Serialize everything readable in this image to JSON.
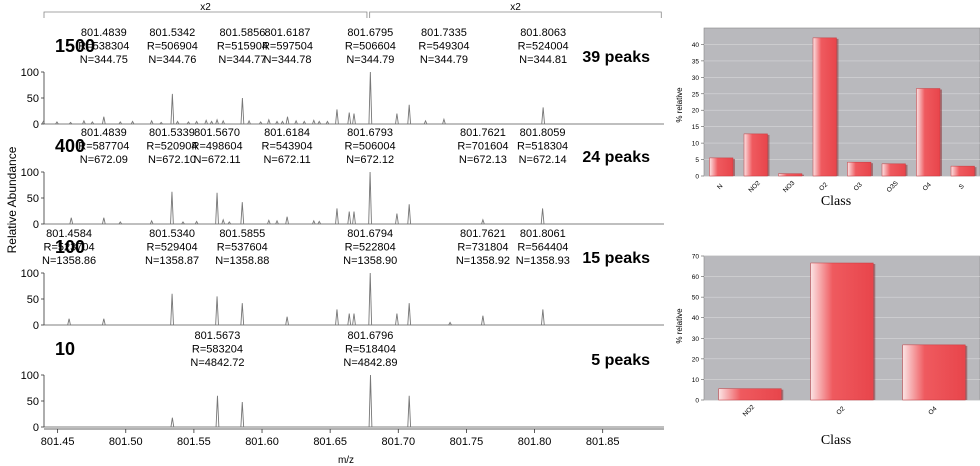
{
  "spectra": {
    "ylabel": "Relative Abundance",
    "xlabel": "m/z",
    "xlim": [
      801.44,
      801.895
    ],
    "ylim": [
      0,
      100
    ],
    "xticks": [
      "801.45",
      "801.50",
      "801.55",
      "801.60",
      "801.65",
      "801.70",
      "801.75",
      "801.80",
      "801.85"
    ],
    "xtick_values": [
      801.45,
      801.5,
      801.55,
      801.6,
      801.65,
      801.7,
      801.75,
      801.8,
      801.85
    ],
    "yticks": [
      "0",
      "50",
      "100"
    ],
    "zoom_brackets": [
      {
        "label": "x2",
        "x_from": 801.44,
        "x_to": 801.677
      },
      {
        "label": "x2",
        "x_from": 801.679,
        "x_to": 801.893
      }
    ],
    "panels": [
      {
        "number": "1500",
        "peaks_label": "39 peaks",
        "peaks": [
          [
            801.4395,
            5
          ],
          [
            801.4495,
            4
          ],
          [
            801.4595,
            3
          ],
          [
            801.4693,
            6
          ],
          [
            801.4755,
            4
          ],
          [
            801.4839,
            14
          ],
          [
            801.496,
            4
          ],
          [
            801.505,
            5
          ],
          [
            801.519,
            6
          ],
          [
            801.526,
            3
          ],
          [
            801.5342,
            58
          ],
          [
            801.538,
            5
          ],
          [
            801.546,
            4
          ],
          [
            801.552,
            5
          ],
          [
            801.559,
            7
          ],
          [
            801.563,
            5
          ],
          [
            801.567,
            8
          ],
          [
            801.5715,
            6
          ],
          [
            801.5856,
            50
          ],
          [
            801.5905,
            6
          ],
          [
            801.599,
            4
          ],
          [
            801.605,
            8
          ],
          [
            801.611,
            5
          ],
          [
            801.615,
            5
          ],
          [
            801.6187,
            14
          ],
          [
            801.625,
            6
          ],
          [
            801.631,
            5
          ],
          [
            801.638,
            7
          ],
          [
            801.642,
            5
          ],
          [
            801.648,
            5
          ],
          [
            801.655,
            28
          ],
          [
            801.664,
            22
          ],
          [
            801.6675,
            20
          ],
          [
            801.6795,
            100
          ],
          [
            801.699,
            20
          ],
          [
            801.708,
            37
          ],
          [
            801.72,
            6
          ],
          [
            801.7335,
            9
          ],
          [
            801.8063,
            32
          ]
        ],
        "labels": [
          {
            "x": 801.4839,
            "lines": [
              "801.4839",
              "R=538304",
              "N=344.75"
            ]
          },
          {
            "x": 801.5342,
            "lines": [
              "801.5342",
              "R=506904",
              "N=344.76"
            ]
          },
          {
            "x": 801.5856,
            "lines": [
              "801.5856",
              "R=515904",
              "N=344.77"
            ]
          },
          {
            "x": 801.6187,
            "lines": [
              "801.6187",
              "R=597504",
              "N=344.78"
            ]
          },
          {
            "x": 801.6795,
            "lines": [
              "801.6795",
              "R=506604",
              "N=344.79"
            ]
          },
          {
            "x": 801.7335,
            "lines": [
              "801.7335",
              "R=549304",
              "N=344.79"
            ]
          },
          {
            "x": 801.8063,
            "lines": [
              "801.8063",
              "R=524004",
              "N=344.81"
            ]
          }
        ]
      },
      {
        "number": "400",
        "peaks_label": "24 peaks",
        "peaks": [
          [
            801.46,
            12
          ],
          [
            801.4839,
            12
          ],
          [
            801.496,
            4
          ],
          [
            801.519,
            6
          ],
          [
            801.5339,
            62
          ],
          [
            801.542,
            4
          ],
          [
            801.552,
            5
          ],
          [
            801.567,
            60
          ],
          [
            801.5715,
            8
          ],
          [
            801.576,
            4
          ],
          [
            801.5855,
            42
          ],
          [
            801.605,
            7
          ],
          [
            801.611,
            6
          ],
          [
            801.6184,
            14
          ],
          [
            801.638,
            6
          ],
          [
            801.642,
            5
          ],
          [
            801.655,
            30
          ],
          [
            801.664,
            24
          ],
          [
            801.6675,
            24
          ],
          [
            801.6793,
            100
          ],
          [
            801.699,
            20
          ],
          [
            801.708,
            38
          ],
          [
            801.7621,
            8
          ],
          [
            801.8059,
            30
          ]
        ],
        "labels": [
          {
            "x": 801.4839,
            "lines": [
              "801.4839",
              "R=587704",
              "N=672.09"
            ]
          },
          {
            "x": 801.5339,
            "lines": [
              "801.5339",
              "R=520904",
              "N=672.10"
            ]
          },
          {
            "x": 801.567,
            "lines": [
              "801.5670",
              "R=498604",
              "N=672.11"
            ]
          },
          {
            "x": 801.6184,
            "lines": [
              "801.6184",
              "R=543904",
              "N=672.11"
            ]
          },
          {
            "x": 801.6793,
            "lines": [
              "801.6793",
              "R=506004",
              "N=672.12"
            ]
          },
          {
            "x": 801.7621,
            "lines": [
              "801.7621",
              "R=701604",
              "N=672.13"
            ]
          },
          {
            "x": 801.8059,
            "lines": [
              "801.8059",
              "R=518304",
              "N=672.14"
            ]
          }
        ]
      },
      {
        "number": "100",
        "peaks_label": "15 peaks",
        "peaks": [
          [
            801.4584,
            12
          ],
          [
            801.4839,
            12
          ],
          [
            801.534,
            60
          ],
          [
            801.567,
            55
          ],
          [
            801.5855,
            42
          ],
          [
            801.6184,
            16
          ],
          [
            801.655,
            30
          ],
          [
            801.664,
            22
          ],
          [
            801.6675,
            22
          ],
          [
            801.6794,
            100
          ],
          [
            801.699,
            22
          ],
          [
            801.708,
            42
          ],
          [
            801.7621,
            18
          ],
          [
            801.8061,
            30
          ],
          [
            801.738,
            5
          ]
        ],
        "labels": [
          {
            "x": 801.4584,
            "lines": [
              "801.4584",
              "R=523704",
              "N=1358.86"
            ]
          },
          {
            "x": 801.534,
            "lines": [
              "801.5340",
              "R=529404",
              "N=1358.87"
            ]
          },
          {
            "x": 801.5855,
            "lines": [
              "801.5855",
              "R=537604",
              "N=1358.88"
            ]
          },
          {
            "x": 801.6794,
            "lines": [
              "801.6794",
              "R=522804",
              "N=1358.90"
            ]
          },
          {
            "x": 801.7621,
            "lines": [
              "801.7621",
              "R=731804",
              "N=1358.92"
            ]
          },
          {
            "x": 801.8061,
            "lines": [
              "801.8061",
              "R=564404",
              "N=1358.93"
            ]
          }
        ]
      },
      {
        "number": "10",
        "peaks_label": "5 peaks",
        "peaks": [
          [
            801.5342,
            18
          ],
          [
            801.5673,
            60
          ],
          [
            801.5855,
            48
          ],
          [
            801.6796,
            100
          ],
          [
            801.708,
            60
          ]
        ],
        "labels": [
          {
            "x": 801.5673,
            "lines": [
              "801.5673",
              "R=583204",
              "N=4842.72"
            ]
          },
          {
            "x": 801.6796,
            "lines": [
              "801.6796",
              "R=518404",
              "N=4842.89"
            ]
          }
        ]
      }
    ]
  },
  "chart_data": [
    {
      "type": "bar",
      "categories": [
        "N",
        "NO2",
        "NO3",
        "O2",
        "O3",
        "O3S",
        "O4",
        "S"
      ],
      "values": [
        5.5,
        12.8,
        0.7,
        42.0,
        4.2,
        3.7,
        26.6,
        3.0
      ],
      "xlabel": "Class",
      "ylabel": "% relative",
      "ylim": [
        0,
        45
      ],
      "yticks": [
        0,
        5,
        10,
        15,
        20,
        25,
        30,
        35,
        40
      ],
      "grid": true,
      "bar_color": "#ef5a5f",
      "background": "#b9b9bd"
    },
    {
      "type": "bar",
      "categories": [
        "NO2",
        "O2",
        "O4"
      ],
      "values": [
        5.5,
        66.6,
        26.8
      ],
      "xlabel": "Class",
      "ylabel": "% relative",
      "ylim": [
        0,
        70
      ],
      "yticks": [
        0,
        10,
        20,
        30,
        40,
        50,
        60,
        70
      ],
      "grid": true,
      "bar_color": "#ef5a5f",
      "background": "#b9b9bd"
    }
  ]
}
